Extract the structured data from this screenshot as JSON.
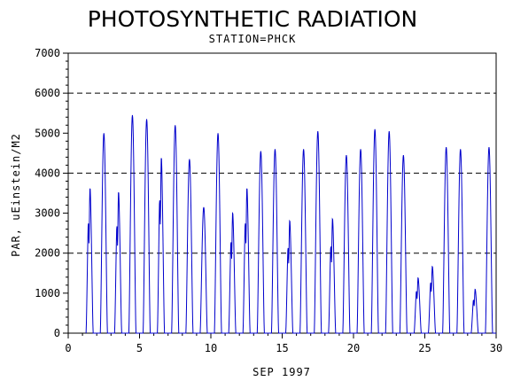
{
  "chart_data": {
    "type": "line",
    "title": "PHOTOSYNTHETIC RADIATION",
    "subtitle": "STATION=PHCK",
    "xlabel": "SEP 1997",
    "ylabel": "PAR, uEinstein/M2",
    "xlim": [
      0,
      30
    ],
    "ylim": [
      0,
      7000
    ],
    "x_ticks": [
      0,
      5,
      10,
      15,
      20,
      25,
      30
    ],
    "y_ticks": [
      0,
      1000,
      2000,
      3000,
      4000,
      5000,
      6000,
      7000
    ],
    "reference_lines": [
      2000,
      4000,
      6000
    ],
    "line_color": "#0000cc",
    "grid": false,
    "series": [
      {
        "daily_peaks": [
          {
            "day": 1,
            "peak": 3800,
            "shape": "dip"
          },
          {
            "day": 2,
            "peak": 5000,
            "shape": "smooth"
          },
          {
            "day": 3,
            "peak": 3700,
            "shape": "dip"
          },
          {
            "day": 4,
            "peak": 5450,
            "shape": "smooth"
          },
          {
            "day": 5,
            "peak": 5350,
            "shape": "smooth"
          },
          {
            "day": 6,
            "peak": 4600,
            "shape": "dip"
          },
          {
            "day": 7,
            "peak": 5200,
            "shape": "smooth"
          },
          {
            "day": 8,
            "peak": 4350,
            "shape": "smooth"
          },
          {
            "day": 9,
            "peak": 3150,
            "shape": "smooth"
          },
          {
            "day": 10,
            "peak": 5000,
            "shape": "smooth"
          },
          {
            "day": 11,
            "peak": 3150,
            "shape": "dip"
          },
          {
            "day": 12,
            "peak": 3800,
            "shape": "dip"
          },
          {
            "day": 13,
            "peak": 4550,
            "shape": "smooth"
          },
          {
            "day": 14,
            "peak": 4600,
            "shape": "smooth"
          },
          {
            "day": 15,
            "peak": 2950,
            "shape": "dip"
          },
          {
            "day": 16,
            "peak": 4600,
            "shape": "smooth"
          },
          {
            "day": 17,
            "peak": 5050,
            "shape": "smooth"
          },
          {
            "day": 18,
            "peak": 3000,
            "shape": "dip"
          },
          {
            "day": 19,
            "peak": 4450,
            "shape": "smooth"
          },
          {
            "day": 20,
            "peak": 4600,
            "shape": "smooth"
          },
          {
            "day": 21,
            "peak": 5100,
            "shape": "smooth"
          },
          {
            "day": 22,
            "peak": 5050,
            "shape": "smooth"
          },
          {
            "day": 23,
            "peak": 4450,
            "shape": "smooth"
          },
          {
            "day": 24,
            "peak": 1450,
            "shape": "dip"
          },
          {
            "day": 25,
            "peak": 1750,
            "shape": "dip"
          },
          {
            "day": 26,
            "peak": 4650,
            "shape": "smooth"
          },
          {
            "day": 27,
            "peak": 4600,
            "shape": "smooth"
          },
          {
            "day": 28,
            "peak": 1150,
            "shape": "dip"
          },
          {
            "day": 29,
            "peak": 4650,
            "shape": "smooth"
          }
        ]
      }
    ]
  }
}
